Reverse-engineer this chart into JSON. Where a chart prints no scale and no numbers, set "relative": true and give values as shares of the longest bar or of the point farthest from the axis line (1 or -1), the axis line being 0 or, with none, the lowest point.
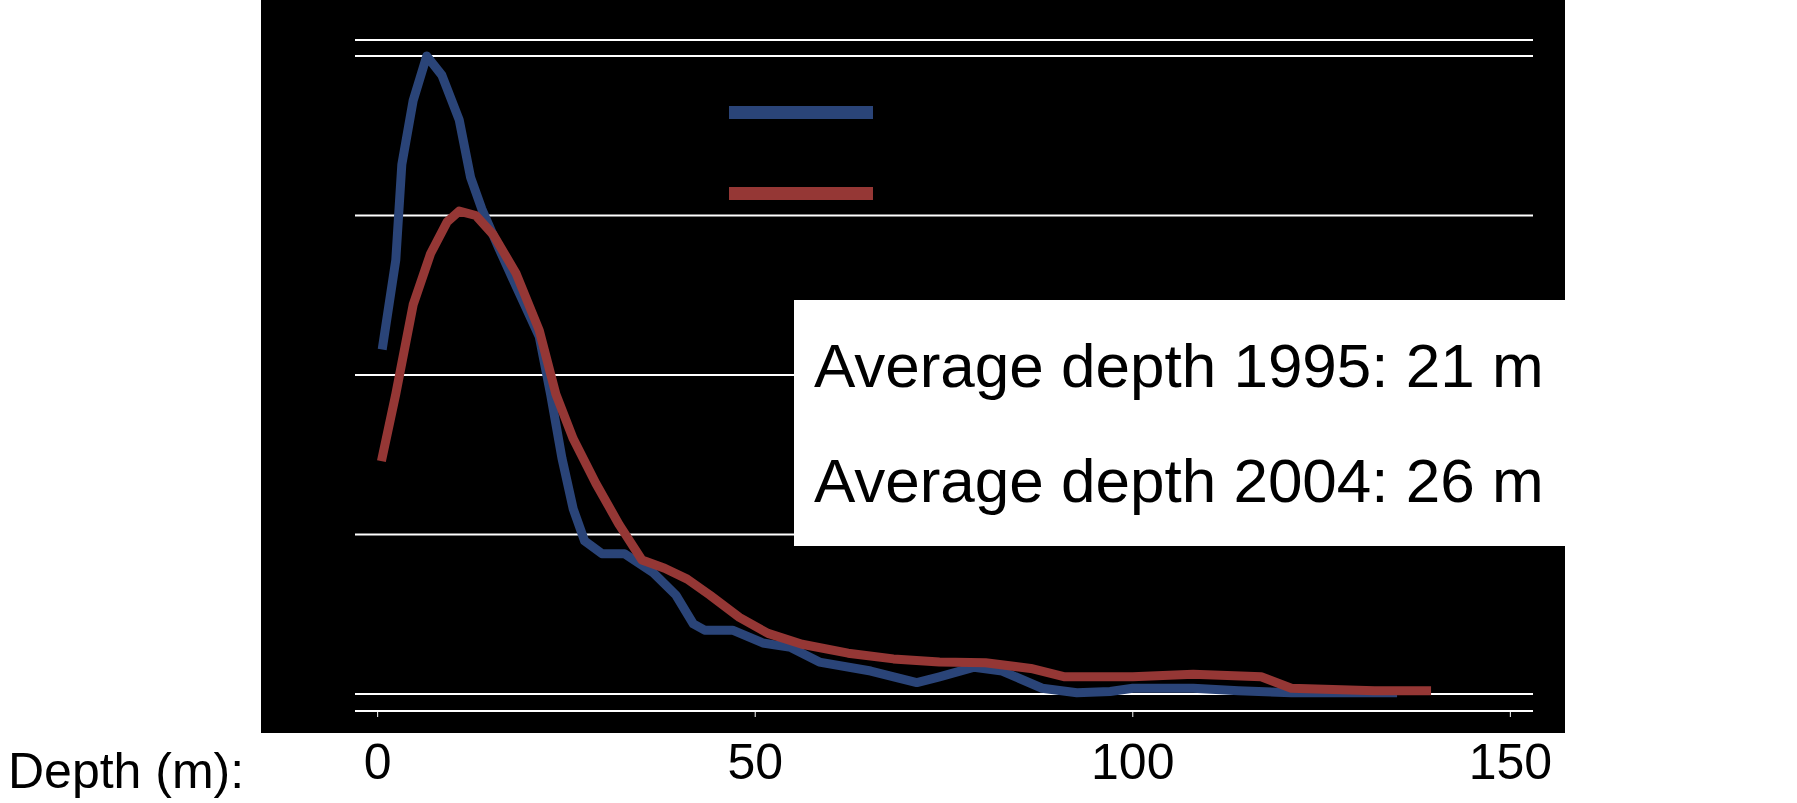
{
  "chart_data": {
    "type": "line",
    "relative": true,
    "xlabel": "Depth (m):",
    "xlim": [
      -3,
      153
    ],
    "xticks": [
      0,
      50,
      100,
      150
    ],
    "grid": "y",
    "line_style": "solid",
    "marker": "none",
    "annotations": [
      "Average depth 1995: 21 m",
      "Average depth 2004: 26 m"
    ],
    "series": [
      {
        "color": "#2a4478",
        "x": [
          0.6,
          2.4,
          3.2,
          4.7,
          6.5,
          8.5,
          10.8,
          12.3,
          13.8,
          16,
          18.3,
          21.4,
          22.9,
          24.4,
          25.9,
          27.4,
          29.7,
          32.7,
          36.5,
          39.5,
          41.8,
          43.3,
          47,
          51,
          54.7,
          58.5,
          65.3,
          71.4,
          74.4,
          79,
          82.7,
          88,
          92.6,
          97,
          100,
          108,
          114,
          121,
          129,
          135
        ],
        "values": [
          0.54,
          0.68,
          0.83,
          0.93,
          1,
          0.97,
          0.9,
          0.81,
          0.76,
          0.7,
          0.64,
          0.56,
          0.47,
          0.37,
          0.29,
          0.24,
          0.22,
          0.22,
          0.19,
          0.155,
          0.11,
          0.1,
          0.1,
          0.08,
          0.073,
          0.05,
          0.036,
          0.018,
          0.027,
          0.042,
          0.036,
          0.009,
          0.002,
          0.004,
          0.009,
          0.009,
          0.005,
          0.002,
          0.002,
          0.002
        ]
      },
      {
        "color": "#953735",
        "x": [
          0.5,
          2.4,
          4.7,
          7,
          9.2,
          10.8,
          13,
          15.3,
          18.3,
          21.4,
          23.6,
          25.9,
          28.9,
          32,
          35,
          38,
          41,
          44,
          47.9,
          51.7,
          56.2,
          62.3,
          68.3,
          74.4,
          80.5,
          86.5,
          91,
          100,
          108,
          117,
          121,
          132,
          139.5
        ],
        "values": [
          0.365,
          0.47,
          0.61,
          0.69,
          0.74,
          0.757,
          0.75,
          0.72,
          0.66,
          0.57,
          0.47,
          0.4,
          0.33,
          0.265,
          0.21,
          0.197,
          0.18,
          0.155,
          0.12,
          0.095,
          0.078,
          0.064,
          0.055,
          0.05,
          0.049,
          0.04,
          0.027,
          0.027,
          0.031,
          0.027,
          0.009,
          0.005,
          0.005
        ]
      }
    ]
  }
}
